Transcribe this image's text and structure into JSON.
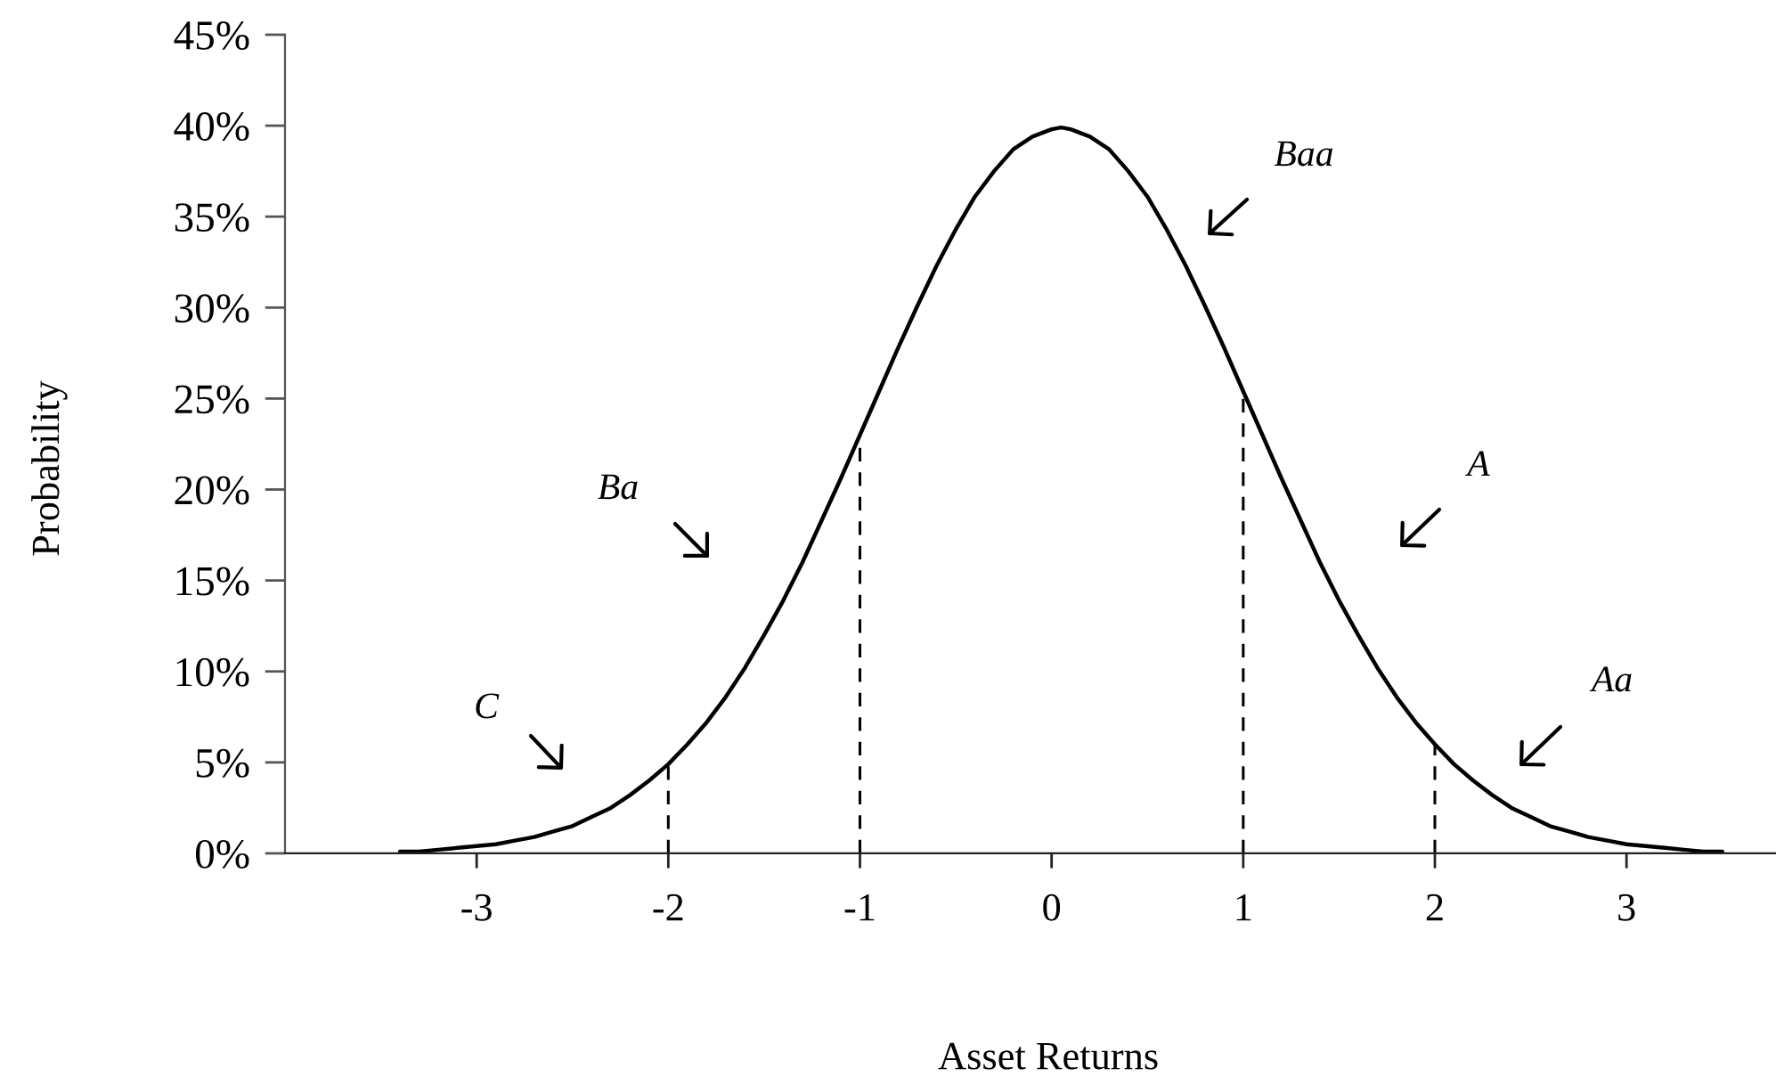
{
  "chart_data": {
    "type": "line",
    "xlabel": "Asset Returns",
    "ylabel": "Probability",
    "line_style": "solid",
    "xlim": [
      -4,
      3.78
    ],
    "xticks": [
      -3,
      -2,
      -1,
      0,
      1,
      2,
      3
    ],
    "ylim": [
      0,
      45
    ],
    "yticks": [
      {
        "value": 0,
        "label": "0%"
      },
      {
        "value": 5,
        "label": "5%"
      },
      {
        "value": 10,
        "label": "10%"
      },
      {
        "value": 15,
        "label": "15%"
      },
      {
        "value": 20,
        "label": "20%"
      },
      {
        "value": 25,
        "label": "25%"
      },
      {
        "value": 30,
        "label": "30%"
      },
      {
        "value": 35,
        "label": "35%"
      },
      {
        "value": 40,
        "label": "40%"
      },
      {
        "value": 45,
        "label": "45%"
      }
    ],
    "series": [
      {
        "color": "#000000",
        "x": [
          -3.4,
          -3.3,
          -3.2,
          -3.1,
          -3.0,
          -2.9,
          -2.8,
          -2.7,
          -2.6,
          -2.5,
          -2.4,
          -2.3,
          -2.2,
          -2.1,
          -2.0,
          -1.9,
          -1.8,
          -1.7,
          -1.6,
          -1.5,
          -1.4,
          -1.3,
          -1.2,
          -1.1,
          -1.0,
          -0.9,
          -0.8,
          -0.7,
          -0.6,
          -0.5,
          -0.4,
          -0.3,
          -0.2,
          -0.1,
          0.0,
          0.05,
          0.1,
          0.2,
          0.3,
          0.4,
          0.5,
          0.6,
          0.7,
          0.8,
          0.9,
          1.0,
          1.1,
          1.2,
          1.3,
          1.4,
          1.5,
          1.6,
          1.7,
          1.8,
          1.9,
          2.0,
          2.1,
          2.2,
          2.3,
          2.4,
          2.5,
          2.6,
          2.7,
          2.8,
          2.9,
          3.0,
          3.1,
          3.2,
          3.3,
          3.4,
          3.5
        ],
        "values": [
          0.1,
          0.1,
          0.2,
          0.3,
          0.4,
          0.5,
          0.7,
          0.9,
          1.2,
          1.5,
          2.0,
          2.5,
          3.2,
          4.0,
          4.9,
          6.0,
          7.2,
          8.6,
          10.2,
          12.0,
          13.9,
          16.0,
          18.3,
          20.6,
          23.0,
          25.4,
          27.8,
          30.1,
          32.3,
          34.3,
          36.1,
          37.5,
          38.7,
          39.4,
          39.8,
          39.9,
          39.8,
          39.4,
          38.7,
          37.5,
          36.1,
          34.3,
          32.3,
          30.1,
          27.8,
          25.4,
          23.0,
          20.6,
          18.3,
          16.0,
          13.9,
          12.0,
          10.2,
          8.6,
          7.2,
          6.0,
          4.9,
          4.0,
          3.2,
          2.5,
          2.0,
          1.5,
          1.2,
          0.9,
          0.7,
          0.5,
          0.4,
          0.3,
          0.2,
          0.1,
          0.1
        ]
      },
      {
        "color": "#000000",
        "line_style": "dashed",
        "x": [
          -2,
          -2
        ],
        "values": [
          0,
          4.9
        ]
      },
      {
        "color": "#000000",
        "line_style": "dashed",
        "x": [
          -1,
          -1
        ],
        "values": [
          0,
          23.0
        ]
      },
      {
        "color": "#000000",
        "line_style": "dashed",
        "x": [
          1,
          1
        ],
        "values": [
          0,
          25.4
        ]
      },
      {
        "color": "#000000",
        "line_style": "dashed",
        "x": [
          2,
          2
        ],
        "values": [
          0,
          6.0
        ]
      }
    ],
    "annotations": [
      "Baa",
      "A",
      "Aa",
      "Ba",
      "C"
    ]
  }
}
